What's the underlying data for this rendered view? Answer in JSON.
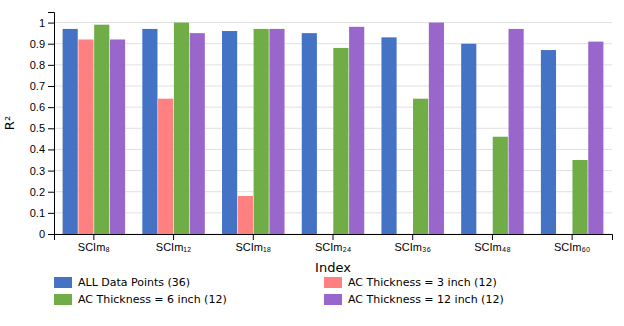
{
  "chart_data": {
    "type": "bar",
    "categories": [
      "SCIm₈",
      "SCIm₁₂",
      "SCIm₁₈",
      "SCIm₂₄",
      "SCIm₃₆",
      "SCIm₄₈",
      "SCIm₆₀"
    ],
    "series": [
      {
        "name": "ALL Data Points (36)",
        "color": "#4472C4",
        "values": [
          0.97,
          0.97,
          0.96,
          0.95,
          0.93,
          0.9,
          0.87
        ]
      },
      {
        "name": "AC Thickness = 3 inch (12)",
        "color": "#FF8080",
        "values": [
          0.92,
          0.64,
          0.18,
          null,
          null,
          null,
          null
        ]
      },
      {
        "name": "AC Thickness = 6 inch (12)",
        "color": "#70AD47",
        "values": [
          0.99,
          1.0,
          0.97,
          0.88,
          0.64,
          0.46,
          0.35
        ]
      },
      {
        "name": "AC Thickness = 12 inch (12)",
        "color": "#9966CC",
        "values": [
          0.92,
          0.95,
          0.97,
          0.98,
          1.0,
          0.97,
          0.91
        ]
      }
    ],
    "xlabel": "Index",
    "ylabel": "R²",
    "ylim": [
      0,
      1.05
    ],
    "yticks": [
      0,
      0.1,
      0.2,
      0.3,
      0.4,
      0.5,
      0.6,
      0.7,
      0.8,
      0.9,
      1
    ],
    "grid": true,
    "legend": "bottom"
  }
}
